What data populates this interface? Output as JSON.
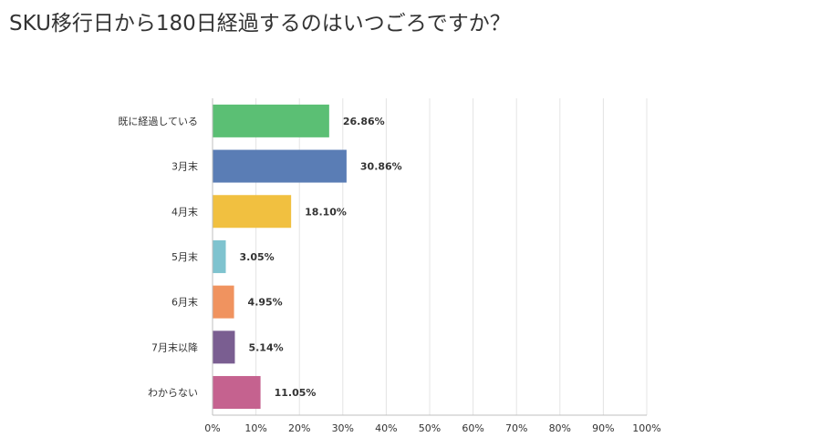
{
  "chart_data": {
    "type": "bar",
    "orientation": "horizontal",
    "title": "SKU移行日から180日経過するのはいつごろですか？",
    "categories": [
      "既に経過している",
      "3月末",
      "4月末",
      "5月末",
      "6月末",
      "7月末以降",
      "わからない"
    ],
    "values": [
      26.86,
      30.86,
      18.1,
      3.05,
      4.95,
      5.14,
      11.05
    ],
    "value_labels": [
      "26.86%",
      "30.86%",
      "18.10%",
      "3.05%",
      "4.95%",
      "5.14%",
      "11.05%"
    ],
    "colors": [
      "#5bbf74",
      "#5a7db5",
      "#f1c040",
      "#7fc3cf",
      "#f0935f",
      "#7a5e91",
      "#c5628f"
    ],
    "xlim": [
      0,
      100
    ],
    "xticks": [
      0,
      10,
      20,
      30,
      40,
      50,
      60,
      70,
      80,
      90,
      100
    ],
    "xtick_labels": [
      "0%",
      "10%",
      "20%",
      "30%",
      "40%",
      "50%",
      "60%",
      "70%",
      "80%",
      "90%",
      "100%"
    ],
    "grid": true,
    "xlabel": "",
    "ylabel": ""
  }
}
